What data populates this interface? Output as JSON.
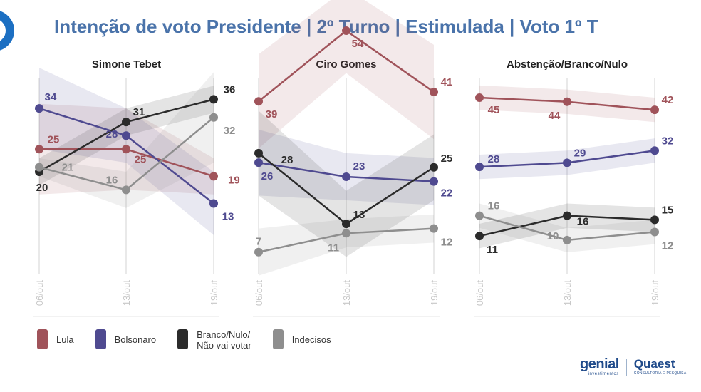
{
  "title": "Intenção de voto Presidente | 2º Turno | Estimulada | Voto 1º T",
  "legend": [
    {
      "label": "Lula",
      "color": "#a0535a"
    },
    {
      "label": "Bolsonaro",
      "color": "#4f4a90"
    },
    {
      "label": "Branco/Nulo/\nNão vai votar",
      "color": "#2b2b2b"
    },
    {
      "label": "Indecisos",
      "color": "#8e8e8e"
    }
  ],
  "logos": {
    "genial": "genial",
    "genial_sub": "investimentos",
    "quaest": "Quaest",
    "quaest_sub": "CONSULTORIA E PESQUISA"
  },
  "chart_data": [
    {
      "type": "line",
      "title": "Simone Tebet",
      "categories": [
        "06/out",
        "13/out",
        "19/out"
      ],
      "ylim": [
        0,
        60
      ],
      "series": [
        {
          "name": "Lula",
          "color": "#a0535a",
          "values": [
            25,
            25,
            19
          ]
        },
        {
          "name": "Bolsonaro",
          "color": "#4f4a90",
          "values": [
            34,
            28,
            13
          ]
        },
        {
          "name": "Branco/Nulo/Não vai votar",
          "color": "#2b2b2b",
          "values": [
            20,
            31,
            36
          ]
        },
        {
          "name": "Indecisos",
          "color": "#8e8e8e",
          "values": [
            21,
            16,
            32
          ]
        }
      ]
    },
    {
      "type": "line",
      "title": "Ciro Gomes",
      "categories": [
        "06/out",
        "13/out",
        "19/out"
      ],
      "ylim": [
        0,
        60
      ],
      "series": [
        {
          "name": "Lula",
          "color": "#a0535a",
          "values": [
            39,
            54,
            41
          ]
        },
        {
          "name": "Bolsonaro",
          "color": "#4f4a90",
          "values": [
            26,
            23,
            22
          ]
        },
        {
          "name": "Branco/Nulo/Não vai votar",
          "color": "#2b2b2b",
          "values": [
            28,
            13,
            25
          ]
        },
        {
          "name": "Indecisos",
          "color": "#8e8e8e",
          "values": [
            7,
            11,
            12
          ]
        }
      ]
    },
    {
      "type": "line",
      "title": "Abstenção/Branco/Nulo",
      "categories": [
        "06/out",
        "13/out",
        "19/out"
      ],
      "ylim": [
        0,
        60
      ],
      "series": [
        {
          "name": "Lula",
          "color": "#a0535a",
          "values": [
            45,
            44,
            42
          ]
        },
        {
          "name": "Bolsonaro",
          "color": "#4f4a90",
          "values": [
            28,
            29,
            32
          ]
        },
        {
          "name": "Branco/Nulo/Não vai votar",
          "color": "#2b2b2b",
          "values": [
            11,
            16,
            15
          ]
        },
        {
          "name": "Indecisos",
          "color": "#8e8e8e",
          "values": [
            16,
            10,
            12
          ]
        }
      ]
    }
  ]
}
